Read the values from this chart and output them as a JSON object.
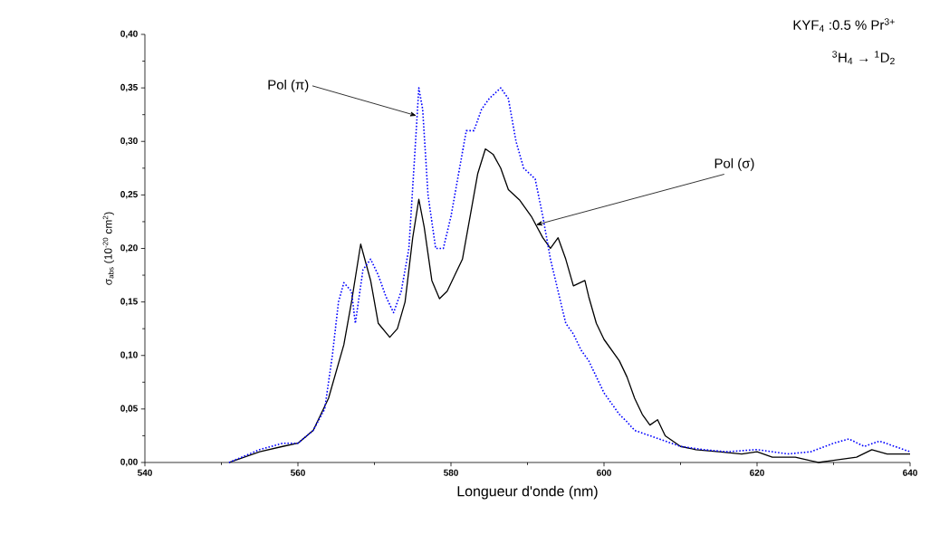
{
  "chart_data": {
    "type": "line",
    "xlabel": "Longueur d'onde (nm)",
    "ylabel": "σ$_{abs}$ (10$^{-20}$ cm$^{2}$)",
    "xlim": [
      540,
      640
    ],
    "ylim": [
      0,
      0.4
    ],
    "xticks": [
      540,
      560,
      580,
      600,
      620,
      640
    ],
    "yticks": [
      {
        "value": 0,
        "label": "0,00"
      },
      {
        "value": 0.05,
        "label": "0,05"
      },
      {
        "value": 0.1,
        "label": "0,10"
      },
      {
        "value": 0.15,
        "label": "0,15"
      },
      {
        "value": 0.2,
        "label": "0,20"
      },
      {
        "value": 0.25,
        "label": "0,25"
      },
      {
        "value": 0.3,
        "label": "0,30"
      },
      {
        "value": 0.35,
        "label": "0,35"
      },
      {
        "value": 0.4,
        "label": "0,40"
      }
    ],
    "grid": false,
    "marker": "none",
    "annotations": [
      {
        "text": "Pol (π)",
        "x": 575.5,
        "y": 0.324
      },
      {
        "text": "Pol (σ)",
        "x": 591.1,
        "y": 0.222
      },
      "KYF$_{4}$ :0.5 % Pr$^{3+}$",
      "$^{3}$H$_{4}$ → $^{1}$D$_{2}$"
    ],
    "series": [
      {
        "color": "#000000",
        "line_style": "solid",
        "x": [
          551,
          555,
          558,
          560,
          562,
          564,
          566,
          567,
          568.2,
          569.5,
          570.5,
          572,
          573,
          574,
          575,
          575.8,
          576.5,
          577.5,
          578.5,
          579.5,
          580.5,
          581.5,
          582.5,
          583.5,
          584.5,
          585.5,
          586.5,
          587.5,
          589,
          590.5,
          592,
          593,
          594,
          595,
          596,
          597.5,
          598,
          599,
          600,
          601,
          602,
          603,
          604,
          605,
          606,
          607,
          608,
          610,
          612,
          615,
          618,
          620,
          622,
          625,
          628,
          630,
          633,
          635,
          637,
          640
        ],
        "values": [
          0,
          0.01,
          0.015,
          0.018,
          0.03,
          0.06,
          0.11,
          0.15,
          0.204,
          0.17,
          0.13,
          0.117,
          0.125,
          0.15,
          0.21,
          0.246,
          0.22,
          0.17,
          0.153,
          0.16,
          0.175,
          0.19,
          0.23,
          0.27,
          0.293,
          0.288,
          0.275,
          0.255,
          0.245,
          0.23,
          0.21,
          0.2,
          0.21,
          0.19,
          0.165,
          0.17,
          0.155,
          0.13,
          0.115,
          0.105,
          0.095,
          0.08,
          0.06,
          0.045,
          0.035,
          0.04,
          0.025,
          0.015,
          0.012,
          0.01,
          0.008,
          0.01,
          0.005,
          0.005,
          0,
          0.002,
          0.005,
          0.012,
          0.008,
          0.008
        ]
      },
      {
        "color": "#0000ff",
        "line_style": "dotted",
        "x": [
          551,
          555,
          558,
          560,
          562,
          563.5,
          564.5,
          565.3,
          566,
          567,
          567.5,
          568.5,
          569.5,
          570.5,
          571.5,
          572.5,
          573.5,
          574.5,
          575.2,
          575.8,
          576.3,
          577,
          578,
          579,
          580,
          581,
          582,
          583,
          584,
          585,
          586.5,
          587.5,
          588.5,
          589.5,
          591,
          592,
          593,
          594,
          595,
          596,
          597,
          598,
          599,
          600,
          601,
          602,
          603,
          604,
          606,
          608,
          610,
          613,
          616,
          620,
          624,
          627,
          630,
          632,
          634,
          636,
          638,
          640
        ],
        "values": [
          0,
          0.012,
          0.018,
          0.018,
          0.03,
          0.05,
          0.1,
          0.15,
          0.168,
          0.16,
          0.13,
          0.18,
          0.19,
          0.175,
          0.155,
          0.14,
          0.16,
          0.2,
          0.28,
          0.35,
          0.33,
          0.25,
          0.2,
          0.2,
          0.23,
          0.27,
          0.31,
          0.31,
          0.33,
          0.34,
          0.35,
          0.34,
          0.3,
          0.275,
          0.265,
          0.23,
          0.19,
          0.16,
          0.13,
          0.12,
          0.105,
          0.095,
          0.08,
          0.065,
          0.055,
          0.045,
          0.038,
          0.03,
          0.025,
          0.02,
          0.015,
          0.012,
          0.01,
          0.012,
          0.008,
          0.01,
          0.018,
          0.022,
          0.015,
          0.02,
          0.015,
          0.01
        ]
      }
    ]
  }
}
